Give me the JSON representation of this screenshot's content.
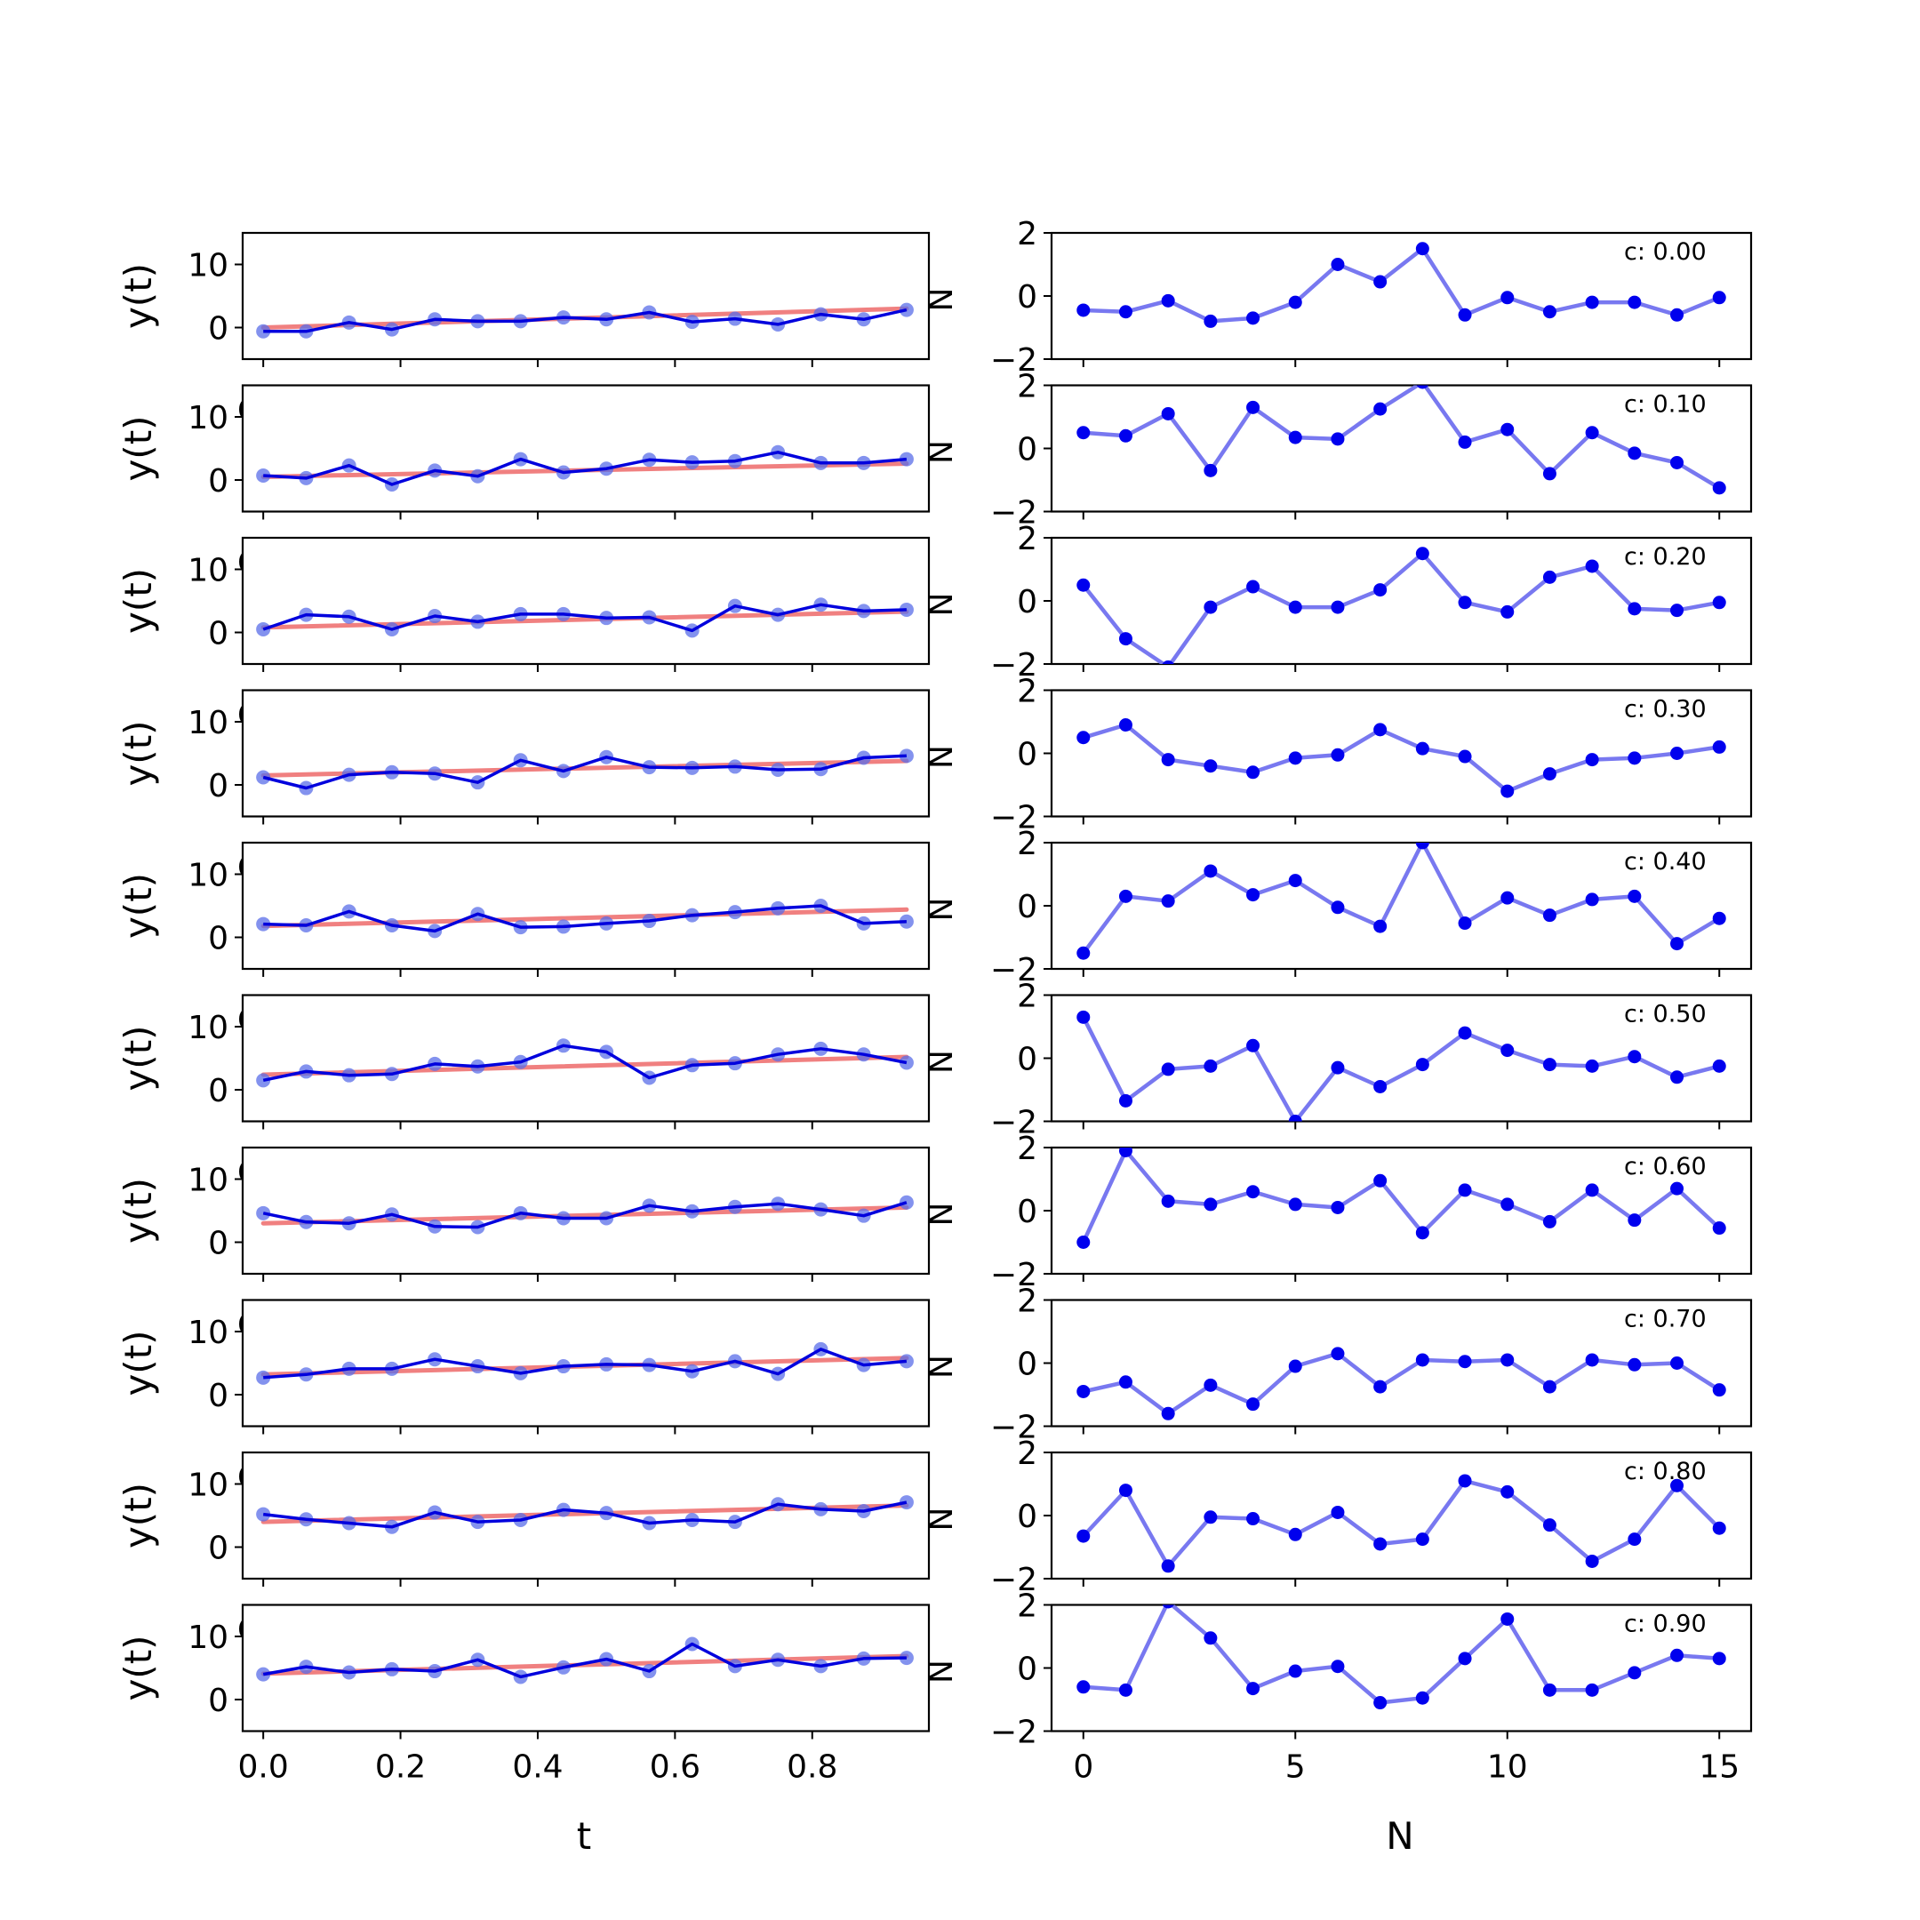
{
  "chart_data": {
    "type": "line",
    "layout": "10 rows x 2 columns of subplots",
    "left_column": {
      "xlabel": "t",
      "ylabel": "y(t)",
      "ylim": [
        -5,
        15
      ],
      "yticks": [
        0,
        10
      ],
      "xlim": [
        -0.03,
        0.97
      ],
      "xticks": [
        "0.0",
        "0.2",
        "0.4",
        "0.6",
        "0.8"
      ],
      "x": [
        0.0,
        0.0625,
        0.125,
        0.1875,
        0.25,
        0.3125,
        0.375,
        0.4375,
        0.5,
        0.5625,
        0.625,
        0.6875,
        0.75,
        0.8125,
        0.875,
        0.9375
      ],
      "colors": {
        "fit": "#f08080",
        "series": "#0000dd",
        "markers": "#5a6ee8"
      },
      "panels": [
        {
          "y": [
            -0.6,
            -0.6,
            0.8,
            -0.3,
            1.3,
            1.0,
            1.0,
            1.6,
            1.3,
            2.4,
            0.9,
            1.4,
            0.5,
            2.1,
            1.3,
            2.8
          ],
          "fit": [
            0.0,
            3.0
          ]
        },
        {
          "y": [
            0.7,
            0.3,
            2.3,
            -0.7,
            1.5,
            0.6,
            3.3,
            1.2,
            1.8,
            3.2,
            2.8,
            3.0,
            4.4,
            2.7,
            2.7,
            3.3
          ],
          "fit": [
            0.5,
            2.6
          ]
        },
        {
          "y": [
            0.5,
            2.8,
            2.5,
            0.5,
            2.6,
            1.7,
            2.9,
            2.9,
            2.3,
            2.4,
            0.3,
            4.2,
            2.8,
            4.4,
            3.4,
            3.6
          ],
          "fit": [
            0.8,
            3.3
          ]
        },
        {
          "y": [
            1.2,
            -0.5,
            1.6,
            2.0,
            1.8,
            0.4,
            3.9,
            2.2,
            4.4,
            2.8,
            2.7,
            2.9,
            2.4,
            2.5,
            4.3,
            4.6
          ],
          "fit": [
            1.5,
            3.8
          ]
        },
        {
          "y": [
            2.1,
            1.9,
            4.1,
            1.9,
            1.0,
            3.7,
            1.6,
            1.7,
            2.2,
            2.6,
            3.5,
            4.0,
            4.6,
            5.0,
            2.2,
            2.5
          ],
          "fit": [
            1.8,
            4.4
          ]
        },
        {
          "y": [
            1.5,
            2.9,
            2.3,
            2.5,
            4.1,
            3.7,
            4.4,
            7.0,
            6.0,
            1.9,
            3.9,
            4.2,
            5.6,
            6.5,
            5.6,
            4.3
          ],
          "fit": [
            2.4,
            5.2
          ]
        },
        {
          "y": [
            4.6,
            3.2,
            3.0,
            4.4,
            2.5,
            2.4,
            4.6,
            3.8,
            3.8,
            5.8,
            4.9,
            5.6,
            6.1,
            5.2,
            4.2,
            6.3
          ],
          "fit": [
            3.0,
            5.5
          ]
        },
        {
          "y": [
            2.7,
            3.2,
            4.1,
            4.1,
            5.6,
            4.5,
            3.4,
            4.5,
            4.8,
            4.7,
            3.7,
            5.3,
            3.3,
            7.2,
            4.7,
            5.3
          ],
          "fit": [
            3.2,
            5.8
          ]
        },
        {
          "y": [
            5.2,
            4.4,
            3.8,
            3.2,
            5.5,
            4.0,
            4.3,
            5.9,
            5.4,
            3.8,
            4.3,
            4.0,
            6.8,
            6.0,
            5.7,
            7.1
          ],
          "fit": [
            4.0,
            6.6
          ]
        },
        {
          "y": [
            4.0,
            5.2,
            4.3,
            4.8,
            4.5,
            6.3,
            3.6,
            5.1,
            6.4,
            4.5,
            8.8,
            5.3,
            6.3,
            5.3,
            6.5,
            6.6
          ],
          "fit": [
            4.1,
            6.9
          ]
        }
      ]
    },
    "right_column": {
      "xlabel": "N",
      "ylim": [
        -2,
        2
      ],
      "yticks": [
        "2",
        "0",
        "−2"
      ],
      "xlim": [
        -0.75,
        15.75
      ],
      "xticks": [
        "0",
        "5",
        "10",
        "15"
      ],
      "x": [
        0,
        1,
        2,
        3,
        4,
        5,
        6,
        7,
        8,
        9,
        10,
        11,
        12,
        13,
        14,
        15
      ],
      "colors": {
        "line": "#7878f0",
        "markers": "#0000ee"
      },
      "panels": [
        {
          "annotation": "c: 0.00",
          "y": [
            -0.45,
            -0.5,
            -0.15,
            -0.8,
            -0.7,
            -0.2,
            1.0,
            0.45,
            1.5,
            -0.6,
            -0.05,
            -0.5,
            -0.2,
            -0.2,
            -0.6,
            -0.05
          ]
        },
        {
          "annotation": "c: 0.10",
          "y": [
            0.5,
            0.4,
            1.1,
            -0.7,
            1.3,
            0.35,
            0.3,
            1.25,
            2.1,
            0.2,
            0.6,
            -0.8,
            0.5,
            -0.15,
            -0.45,
            -1.25
          ]
        },
        {
          "annotation": "c: 0.20",
          "y": [
            0.5,
            -1.2,
            -2.1,
            -0.2,
            0.45,
            -0.2,
            -0.2,
            0.35,
            1.5,
            -0.05,
            -0.35,
            0.75,
            1.1,
            -0.25,
            -0.3,
            -0.05
          ]
        },
        {
          "annotation": "c: 0.30",
          "y": [
            0.5,
            0.9,
            -0.2,
            -0.4,
            -0.6,
            -0.15,
            -0.05,
            0.75,
            0.15,
            -0.1,
            -1.2,
            -0.65,
            -0.2,
            -0.15,
            0.0,
            0.2
          ]
        },
        {
          "annotation": "c: 0.40",
          "y": [
            -1.5,
            0.3,
            0.15,
            1.1,
            0.35,
            0.8,
            -0.05,
            -0.65,
            2.0,
            -0.55,
            0.25,
            -0.3,
            0.2,
            0.3,
            -1.2,
            -0.4
          ]
        },
        {
          "annotation": "c: 0.50",
          "y": [
            1.3,
            -1.35,
            -0.35,
            -0.25,
            0.4,
            -2.0,
            -0.3,
            -0.9,
            -0.2,
            0.8,
            0.25,
            -0.2,
            -0.25,
            0.05,
            -0.6,
            -0.25
          ]
        },
        {
          "annotation": "c: 0.60",
          "y": [
            -1.0,
            1.9,
            0.3,
            0.2,
            0.6,
            0.2,
            0.1,
            0.95,
            -0.7,
            0.65,
            0.2,
            -0.35,
            0.65,
            -0.3,
            0.7,
            -0.55
          ]
        },
        {
          "annotation": "c: 0.70",
          "y": [
            -0.9,
            -0.6,
            -1.6,
            -0.7,
            -1.3,
            -0.1,
            0.3,
            -0.75,
            0.1,
            0.05,
            0.1,
            -0.75,
            0.1,
            -0.05,
            0.0,
            -0.85
          ]
        },
        {
          "annotation": "c: 0.80",
          "y": [
            -0.65,
            0.8,
            -1.6,
            -0.05,
            -0.1,
            -0.6,
            0.1,
            -0.9,
            -0.75,
            1.1,
            0.75,
            -0.3,
            -1.45,
            -0.75,
            0.95,
            -0.4
          ]
        },
        {
          "annotation": "c: 0.90",
          "y": [
            -0.6,
            -0.7,
            2.1,
            0.95,
            -0.65,
            -0.1,
            0.05,
            -1.1,
            -0.95,
            0.3,
            1.55,
            -0.7,
            -0.7,
            -0.15,
            0.4,
            0.3
          ]
        }
      ]
    },
    "right_panel_ylabel": "N",
    "stray_glyph": "C"
  }
}
